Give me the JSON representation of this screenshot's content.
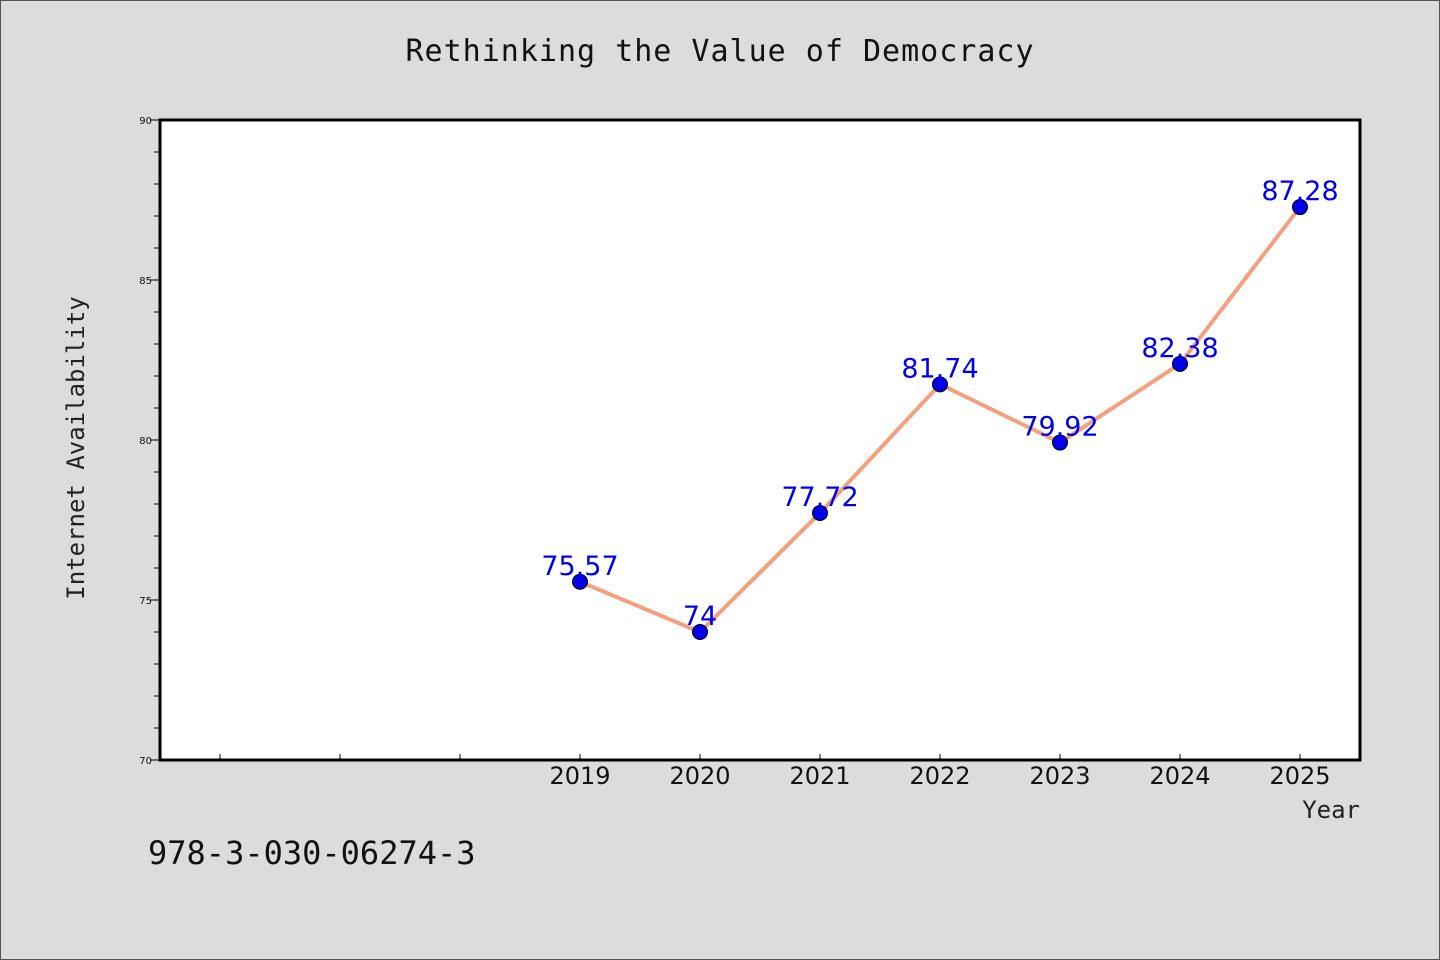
{
  "chart_data": {
    "type": "line",
    "title": "Rethinking the Value of Democracy",
    "xlabel": "Year",
    "ylabel": "Internet Availability",
    "x": [
      "2019",
      "2020",
      "2021",
      "2022",
      "2023",
      "2024",
      "2025"
    ],
    "series": [
      {
        "values": [
          75.57,
          74,
          77.72,
          81.74,
          79.92,
          82.38,
          87.28
        ],
        "labels": [
          "75.57",
          "74",
          "77.72",
          "81.74",
          "79.92",
          "82.38",
          "87.28"
        ]
      }
    ],
    "ylim": [
      70,
      90
    ],
    "yticks": [
      "70",
      "75",
      "80",
      "85",
      "90"
    ],
    "x_slots": 10,
    "grid": false,
    "colors": {
      "line": "#f4a07e",
      "marker": "#0000ee",
      "label": "#0000ee",
      "background": "#dcdcdc",
      "plot_bg": "#ffffff"
    }
  },
  "footer": {
    "isbn": "978-3-030-06274-3"
  }
}
